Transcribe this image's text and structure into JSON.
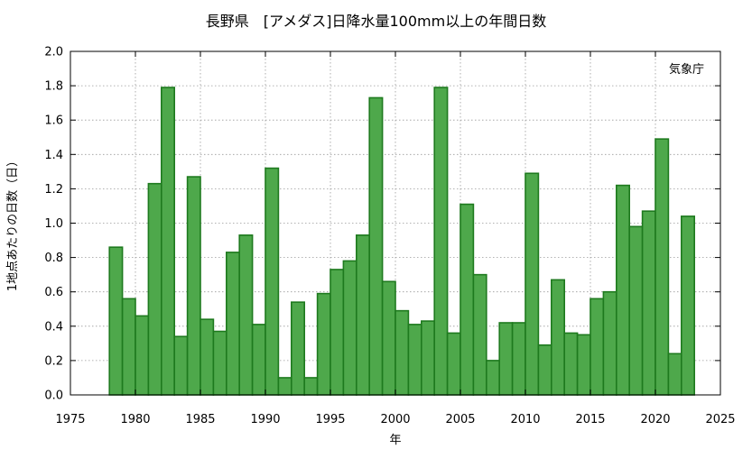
{
  "chart_data": {
    "type": "bar",
    "title": "長野県　[アメダス]日降水量100mm以上の年間日数",
    "xlabel": "年",
    "ylabel": "1地点あたりの日数（日）",
    "annotation": "気象庁",
    "xlim": [
      1975,
      2025
    ],
    "ylim": [
      0.0,
      2.0
    ],
    "x_ticks": [
      "1975",
      "1980",
      "1985",
      "1990",
      "1995",
      "2000",
      "2005",
      "2010",
      "2015",
      "2020",
      "2025"
    ],
    "y_ticks": [
      "0.0",
      "0.2",
      "0.4",
      "0.6",
      "0.8",
      "1.0",
      "1.2",
      "1.4",
      "1.6",
      "1.8",
      "2.0"
    ],
    "grid": true,
    "bar_color": "#4ea84b",
    "bar_edge_color": "#1e7a1e",
    "x": [
      1979,
      1980,
      1981,
      1982,
      1983,
      1984,
      1985,
      1986,
      1987,
      1988,
      1989,
      1990,
      1991,
      1992,
      1993,
      1994,
      1995,
      1996,
      1997,
      1998,
      1999,
      2000,
      2001,
      2002,
      2003,
      2004,
      2005,
      2006,
      2007,
      2008,
      2009,
      2010,
      2011,
      2012,
      2013,
      2014,
      2015,
      2016,
      2017,
      2018,
      2019,
      2020,
      2021,
      2022,
      2023
    ],
    "values": [
      0.86,
      0.56,
      0.46,
      1.23,
      1.79,
      0.34,
      1.27,
      0.44,
      0.37,
      0.83,
      0.93,
      0.41,
      1.32,
      0.1,
      0.54,
      0.1,
      0.59,
      0.73,
      0.78,
      0.93,
      1.73,
      0.66,
      0.49,
      0.41,
      0.43,
      1.79,
      0.36,
      1.11,
      0.7,
      0.2,
      0.42,
      0.42,
      1.29,
      0.29,
      0.67,
      0.36,
      0.35,
      0.56,
      0.6,
      1.22,
      0.98,
      1.07,
      1.49,
      0.24,
      1.04
    ]
  }
}
